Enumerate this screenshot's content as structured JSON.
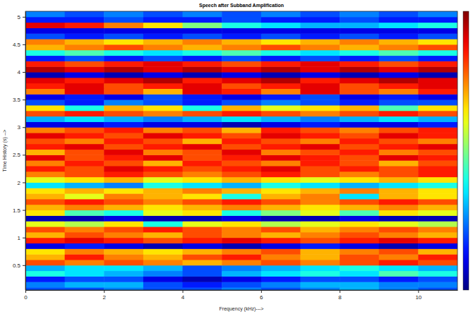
{
  "chart_data": {
    "type": "heatmap",
    "title": "Speech after Subband Amplification",
    "x_label": "Frequency (kHz)--->",
    "y_label": "Time History (s) -->",
    "xlim": [
      0,
      11
    ],
    "xticks": [
      0,
      2,
      4,
      6,
      8,
      10
    ],
    "ylim": [
      0.05,
      5.1
    ],
    "yticks": [
      0.5,
      1,
      1.5,
      2,
      2.5,
      3,
      3.5,
      4,
      4.5,
      5
    ],
    "grid": false,
    "colorbar_range": [
      0,
      1
    ],
    "x": [
      0.5,
      1.5,
      2.5,
      3.5,
      4.5,
      5.5,
      6.5,
      7.5,
      8.5,
      9.5,
      10.5
    ],
    "y": [
      0.05,
      0.15,
      0.25,
      0.35,
      0.45,
      0.55,
      0.65,
      0.75,
      0.85,
      0.95,
      1.05,
      1.15,
      1.25,
      1.35,
      1.45,
      1.55,
      1.65,
      1.75,
      1.85,
      1.95,
      2.05,
      2.15,
      2.25,
      2.35,
      2.45,
      2.55,
      2.65,
      2.75,
      2.85,
      2.95,
      3.05,
      3.15,
      3.25,
      3.35,
      3.45,
      3.55,
      3.65,
      3.75,
      3.85,
      3.95,
      4.05,
      4.15,
      4.25,
      4.35,
      4.45,
      4.55,
      4.65,
      4.75,
      4.85,
      4.95,
      5.05
    ],
    "values": [
      [
        0.2,
        0.2,
        0.25,
        0.2,
        0.2,
        0.25,
        0.2,
        0.25,
        0.3,
        0.25,
        0.2
      ],
      [
        0.25,
        0.3,
        0.3,
        0.2,
        0.15,
        0.2,
        0.25,
        0.3,
        0.3,
        0.25,
        0.25
      ],
      [
        0.15,
        0.2,
        0.2,
        0.1,
        0.05,
        0.1,
        0.15,
        0.2,
        0.2,
        0.15,
        0.2
      ],
      [
        0.4,
        0.35,
        0.3,
        0.25,
        0.2,
        0.3,
        0.35,
        0.4,
        0.35,
        0.45,
        0.4
      ],
      [
        0.3,
        0.35,
        0.35,
        0.3,
        0.2,
        0.25,
        0.3,
        0.35,
        0.4,
        0.35,
        0.3
      ],
      [
        0.8,
        0.75,
        0.8,
        0.75,
        0.7,
        0.75,
        0.8,
        0.75,
        0.8,
        0.85,
        0.8
      ],
      [
        0.7,
        0.85,
        0.75,
        0.7,
        0.8,
        0.85,
        0.75,
        0.7,
        0.8,
        0.75,
        0.85
      ],
      [
        0.65,
        0.75,
        0.7,
        0.65,
        0.7,
        0.75,
        0.8,
        0.7,
        0.75,
        0.8,
        0.7
      ],
      [
        0.1,
        0.15,
        0.1,
        0.05,
        0.1,
        0.05,
        0.1,
        0.15,
        0.1,
        0.05,
        0.1
      ],
      [
        0.85,
        0.9,
        0.85,
        0.8,
        0.85,
        0.9,
        0.85,
        0.8,
        0.85,
        0.9,
        0.85
      ],
      [
        0.7,
        0.8,
        0.75,
        0.7,
        0.8,
        0.75,
        0.7,
        0.75,
        0.8,
        0.75,
        0.7
      ],
      [
        0.8,
        0.75,
        0.8,
        0.85,
        0.8,
        0.75,
        0.8,
        0.7,
        0.75,
        0.8,
        0.75
      ],
      [
        0.6,
        0.55,
        0.65,
        0.4,
        0.6,
        0.65,
        0.55,
        0.6,
        0.65,
        0.6,
        0.55
      ],
      [
        0.05,
        0.05,
        0.1,
        0.05,
        0.05,
        0.1,
        0.05,
        0.05,
        0.1,
        0.05,
        0.05
      ],
      [
        0.65,
        0.45,
        0.4,
        0.6,
        0.65,
        0.4,
        0.5,
        0.6,
        0.45,
        0.65,
        0.6
      ],
      [
        0.7,
        0.75,
        0.7,
        0.65,
        0.7,
        0.75,
        0.7,
        0.65,
        0.7,
        0.75,
        0.7
      ],
      [
        0.8,
        0.85,
        0.8,
        0.75,
        0.8,
        0.85,
        0.8,
        0.75,
        0.8,
        0.85,
        0.8
      ],
      [
        0.7,
        0.6,
        0.75,
        0.7,
        0.65,
        0.4,
        0.7,
        0.75,
        0.35,
        0.7,
        0.65
      ],
      [
        0.65,
        0.7,
        0.65,
        0.7,
        0.75,
        0.7,
        0.65,
        0.7,
        0.75,
        0.7,
        0.65
      ],
      [
        0.35,
        0.3,
        0.25,
        0.4,
        0.35,
        0.3,
        0.4,
        0.35,
        0.3,
        0.35,
        0.4
      ],
      [
        0.6,
        0.65,
        0.7,
        0.6,
        0.65,
        0.7,
        0.65,
        0.6,
        0.65,
        0.7,
        0.65
      ],
      [
        0.75,
        0.8,
        0.85,
        0.8,
        0.75,
        0.8,
        0.85,
        0.8,
        0.75,
        0.8,
        0.85
      ],
      [
        0.85,
        0.8,
        0.9,
        0.85,
        0.8,
        0.85,
        0.9,
        0.8,
        0.85,
        0.8,
        0.85
      ],
      [
        0.75,
        0.85,
        0.8,
        0.7,
        0.85,
        0.8,
        0.75,
        0.85,
        0.8,
        0.7,
        0.8
      ],
      [
        0.9,
        0.8,
        0.85,
        0.9,
        0.8,
        0.85,
        0.9,
        0.85,
        0.8,
        0.9,
        0.85
      ],
      [
        0.7,
        0.8,
        0.9,
        0.75,
        0.8,
        0.9,
        0.75,
        0.8,
        0.85,
        0.75,
        0.8
      ],
      [
        0.85,
        0.9,
        0.8,
        0.85,
        0.9,
        0.8,
        0.85,
        0.9,
        0.8,
        0.85,
        0.9
      ],
      [
        0.8,
        0.75,
        0.85,
        0.8,
        0.7,
        0.85,
        0.8,
        0.75,
        0.85,
        0.8,
        0.75
      ],
      [
        0.9,
        0.85,
        0.8,
        0.9,
        0.85,
        0.8,
        0.9,
        0.85,
        0.8,
        0.9,
        0.85
      ],
      [
        0.75,
        0.8,
        0.85,
        0.75,
        0.8,
        0.7,
        0.85,
        0.8,
        0.75,
        0.8,
        0.85
      ],
      [
        0.1,
        0.1,
        0.15,
        0.1,
        0.1,
        0.05,
        0.1,
        0.15,
        0.1,
        0.1,
        0.15
      ],
      [
        0.3,
        0.35,
        0.3,
        0.25,
        0.3,
        0.35,
        0.3,
        0.25,
        0.3,
        0.35,
        0.3
      ],
      [
        0.8,
        0.85,
        0.8,
        0.75,
        0.8,
        0.85,
        0.8,
        0.75,
        0.8,
        0.85,
        0.8
      ],
      [
        0.65,
        0.4,
        0.7,
        0.65,
        0.4,
        0.7,
        0.6,
        0.65,
        0.7,
        0.45,
        0.65
      ],
      [
        0.2,
        0.15,
        0.25,
        0.2,
        0.15,
        0.2,
        0.25,
        0.2,
        0.15,
        0.2,
        0.2
      ],
      [
        0.1,
        0.15,
        0.1,
        0.2,
        0.15,
        0.1,
        0.15,
        0.2,
        0.1,
        0.15,
        0.1
      ],
      [
        0.75,
        0.9,
        0.8,
        0.7,
        0.9,
        0.85,
        0.75,
        0.9,
        0.8,
        0.75,
        0.85
      ],
      [
        0.85,
        0.9,
        0.8,
        0.85,
        0.9,
        0.8,
        0.85,
        0.9,
        0.8,
        0.85,
        0.9
      ],
      [
        0.9,
        0.85,
        0.9,
        0.95,
        0.85,
        0.9,
        0.95,
        0.85,
        0.9,
        0.95,
        0.9
      ],
      [
        0.05,
        0.1,
        0.05,
        0.1,
        0.05,
        0.1,
        0.05,
        0.1,
        0.05,
        0.1,
        0.05
      ],
      [
        0.95,
        0.9,
        0.95,
        0.9,
        0.95,
        0.9,
        0.95,
        0.9,
        0.95,
        0.9,
        0.95
      ],
      [
        0.85,
        0.8,
        0.85,
        0.9,
        0.85,
        0.8,
        0.85,
        0.9,
        0.85,
        0.8,
        0.85
      ],
      [
        0.15,
        0.2,
        0.15,
        0.2,
        0.15,
        0.2,
        0.15,
        0.2,
        0.15,
        0.2,
        0.15
      ],
      [
        0.4,
        0.45,
        0.4,
        0.35,
        0.4,
        0.45,
        0.4,
        0.35,
        0.4,
        0.45,
        0.4
      ],
      [
        0.7,
        0.75,
        0.8,
        0.75,
        0.7,
        0.75,
        0.8,
        0.75,
        0.7,
        0.75,
        0.8
      ],
      [
        0.75,
        0.7,
        0.65,
        0.7,
        0.75,
        0.7,
        0.65,
        0.7,
        0.75,
        0.7,
        0.65
      ],
      [
        0.2,
        0.15,
        0.2,
        0.15,
        0.2,
        0.15,
        0.2,
        0.15,
        0.2,
        0.15,
        0.2
      ],
      [
        0.1,
        0.1,
        0.1,
        0.1,
        0.1,
        0.1,
        0.1,
        0.1,
        0.1,
        0.1,
        0.1
      ],
      [
        0.9,
        0.85,
        0.75,
        0.65,
        0.5,
        0.4,
        0.35,
        0.3,
        0.3,
        0.35,
        0.4
      ],
      [
        0.15,
        0.15,
        0.2,
        0.15,
        0.15,
        0.2,
        0.15,
        0.15,
        0.2,
        0.15,
        0.15
      ],
      [
        0.25,
        0.2,
        0.25,
        0.2,
        0.25,
        0.2,
        0.25,
        0.2,
        0.25,
        0.2,
        0.25
      ]
    ]
  }
}
